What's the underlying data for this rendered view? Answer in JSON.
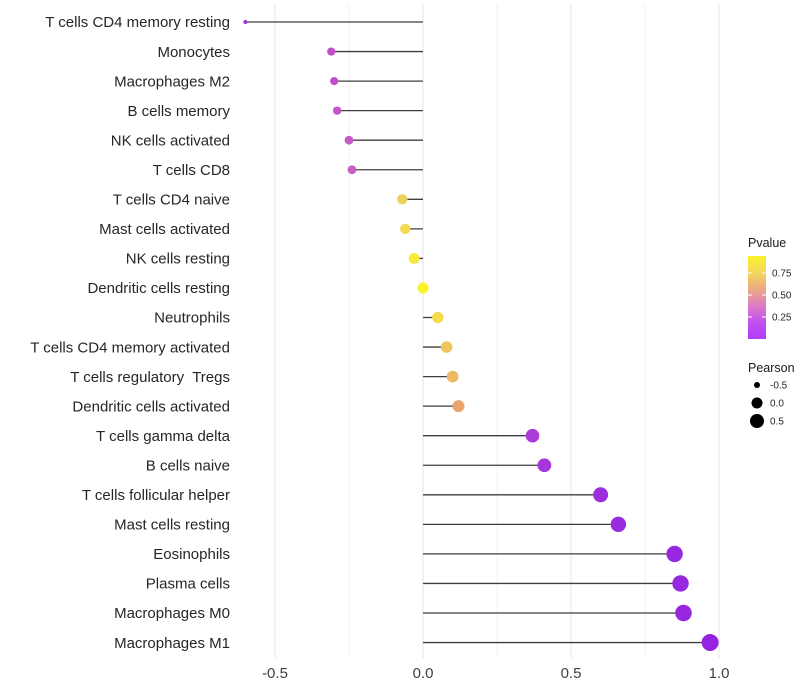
{
  "chart_data": {
    "type": "scatter",
    "subtype": "lollipop",
    "title": "",
    "xlabel": "",
    "ylabel": "",
    "xlim": [
      -0.65,
      1.06
    ],
    "grid": "vertical-only",
    "legend_position": "right",
    "x_ticks": [
      {
        "value": -0.5,
        "label": "-0.5"
      },
      {
        "value": 0.0,
        "label": "0.0"
      },
      {
        "value": 0.5,
        "label": "0.5"
      },
      {
        "value": 1.0,
        "label": "1.0"
      }
    ],
    "minor_tick_values": [
      -0.25,
      0.25,
      0.75
    ],
    "segment_color": "#3E3E3E",
    "major_grid_color": "#E7E7E7",
    "minor_grid_color": "#F1F1F1",
    "points": [
      {
        "name": "T cells CD4 memory resting",
        "pearson": -0.6,
        "radius": 2.0,
        "color": "#9631D6"
      },
      {
        "name": "Monocytes",
        "pearson": -0.31,
        "radius": 4.1,
        "color": "#C24FC9"
      },
      {
        "name": "Macrophages M2",
        "pearson": -0.3,
        "radius": 4.1,
        "color": "#C24FC9"
      },
      {
        "name": "B cells memory",
        "pearson": -0.29,
        "radius": 4.2,
        "color": "#C455C8"
      },
      {
        "name": "NK cells activated",
        "pearson": -0.25,
        "radius": 4.4,
        "color": "#C75CC5"
      },
      {
        "name": "T cells CD8",
        "pearson": -0.24,
        "radius": 4.4,
        "color": "#C75FC4"
      },
      {
        "name": "T cells CD4 naive",
        "pearson": -0.07,
        "radius": 5.2,
        "color": "#EDD15C"
      },
      {
        "name": "Mast cells activated",
        "pearson": -0.06,
        "radius": 5.2,
        "color": "#F2DB51"
      },
      {
        "name": "NK cells resting",
        "pearson": -0.03,
        "radius": 5.4,
        "color": "#F9E93B"
      },
      {
        "name": "Dendritic cells resting",
        "pearson": 0.0,
        "radius": 5.5,
        "color": "#FDF32B"
      },
      {
        "name": "Neutrophils",
        "pearson": 0.05,
        "radius": 5.7,
        "color": "#F4DC4B"
      },
      {
        "name": "T cells CD4 memory activated",
        "pearson": 0.08,
        "radius": 5.8,
        "color": "#EFC65B"
      },
      {
        "name": "T cells regulatory  Tregs",
        "pearson": 0.1,
        "radius": 5.9,
        "color": "#EDBA62"
      },
      {
        "name": "Dendritic cells activated",
        "pearson": 0.12,
        "radius": 6.0,
        "color": "#EBA46E"
      },
      {
        "name": "T cells gamma delta",
        "pearson": 0.37,
        "radius": 6.8,
        "color": "#A93BD9"
      },
      {
        "name": "B cells naive",
        "pearson": 0.41,
        "radius": 6.9,
        "color": "#A637DA"
      },
      {
        "name": "T cells follicular helper",
        "pearson": 0.6,
        "radius": 7.5,
        "color": "#9C2EDD"
      },
      {
        "name": "Mast cells resting",
        "pearson": 0.66,
        "radius": 7.7,
        "color": "#9A2BDE"
      },
      {
        "name": "Eosinophils",
        "pearson": 0.85,
        "radius": 8.2,
        "color": "#9728DF"
      },
      {
        "name": "Plasma cells",
        "pearson": 0.87,
        "radius": 8.2,
        "color": "#9728DF"
      },
      {
        "name": "Macrophages M0",
        "pearson": 0.88,
        "radius": 8.3,
        "color": "#9728DF"
      },
      {
        "name": "Macrophages M1",
        "pearson": 0.97,
        "radius": 8.5,
        "color": "#9424E1"
      }
    ],
    "legends": {
      "pvalue": {
        "title": "Pvalue",
        "gradient_top_to_bottom": [
          "#FBF32B",
          "#F5D55C",
          "#EBA982",
          "#DC7BC6",
          "#C250EE",
          "#B33BF7"
        ],
        "ticks": [
          {
            "label": "0.75",
            "frac_from_top": 0.205
          },
          {
            "label": "0.50",
            "frac_from_top": 0.47
          },
          {
            "label": "0.25",
            "frac_from_top": 0.735
          }
        ]
      },
      "pearson": {
        "title": "Pearson",
        "dot_color": "#000000",
        "items": [
          {
            "label": "-0.5",
            "radius": 3.0
          },
          {
            "label": "0.0",
            "radius": 5.5
          },
          {
            "label": "0.5",
            "radius": 7.0
          }
        ]
      }
    }
  }
}
